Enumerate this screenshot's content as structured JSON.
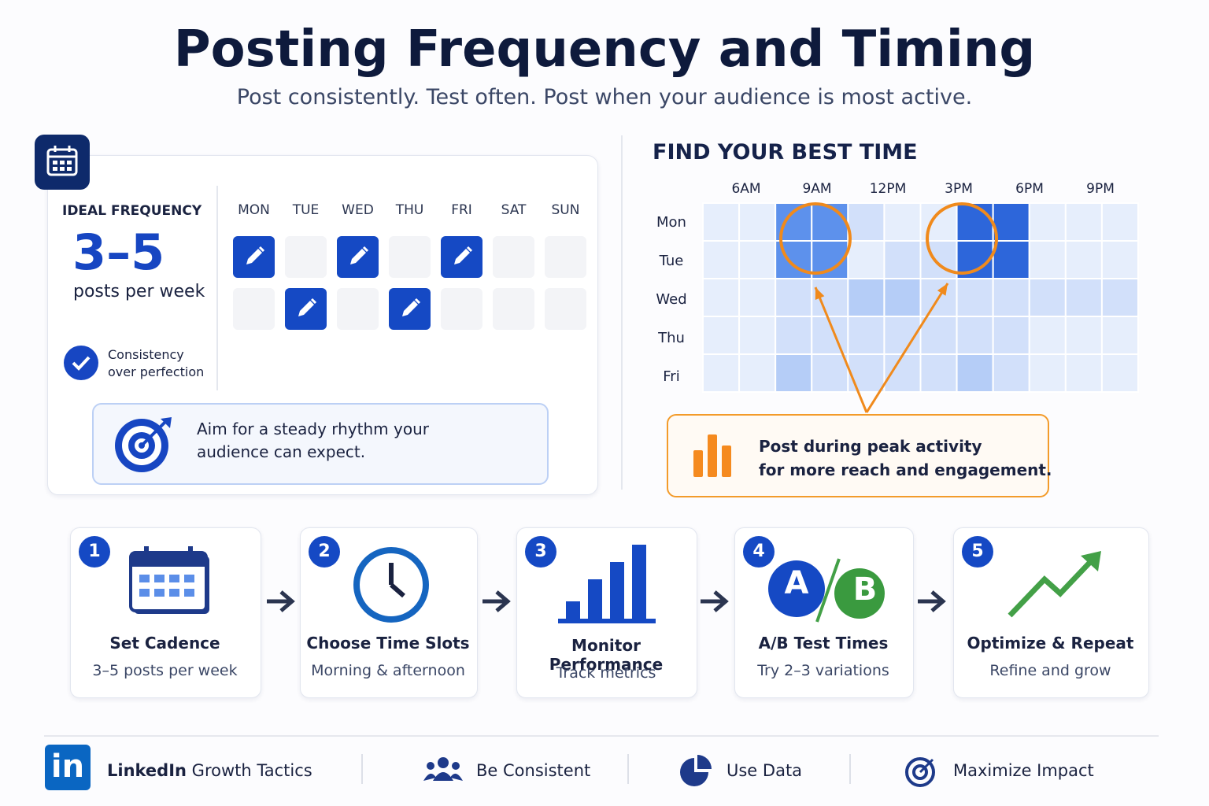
{
  "header": {
    "title": "Posting Frequency and Timing",
    "subtitle": "Post consistently. Test often. Post when your audience is most active."
  },
  "frequency": {
    "label": "IDEAL FREQUENCY",
    "value": "3–5",
    "unit": "posts per week",
    "check": "Consistency\nover perfection",
    "days": [
      "MON",
      "TUE",
      "WED",
      "THU",
      "FRI",
      "SAT",
      "SUN"
    ],
    "grid": [
      [
        1,
        0,
        1,
        0,
        1,
        0,
        0
      ],
      [
        0,
        1,
        0,
        1,
        0,
        0,
        0
      ]
    ],
    "tip": "Aim for a steady rhythm your\naudience can expect."
  },
  "heatmap": {
    "title": "FIND YOUR BEST TIME",
    "times": [
      "6AM",
      "9AM",
      "12PM",
      "3PM",
      "6PM",
      "9PM"
    ],
    "days": [
      "Mon",
      "Tue",
      "Wed",
      "Thu",
      "Fri"
    ],
    "levels": [
      [
        0,
        0,
        3,
        3,
        1,
        0,
        0,
        4,
        4,
        0,
        0,
        0
      ],
      [
        0,
        0,
        3,
        3,
        0,
        1,
        1,
        4,
        4,
        0,
        0,
        0
      ],
      [
        0,
        0,
        1,
        1,
        2,
        2,
        1,
        1,
        1,
        1,
        1,
        1
      ],
      [
        0,
        0,
        1,
        1,
        1,
        1,
        1,
        1,
        1,
        0,
        0,
        0
      ],
      [
        0,
        0,
        2,
        1,
        1,
        1,
        1,
        2,
        1,
        0,
        0,
        0
      ]
    ],
    "callout": "Post during peak activity\nfor more reach and engagement."
  },
  "steps": [
    {
      "number": "1",
      "title": "Set Cadence",
      "text": "3–5 posts per week"
    },
    {
      "number": "2",
      "title": "Choose Time Slots",
      "text": "Morning & afternoon"
    },
    {
      "number": "3",
      "title": "Monitor Performance",
      "text": "Track metrics"
    },
    {
      "number": "4",
      "title": "A/B Test Times",
      "text": "Try 2–3 variations"
    },
    {
      "number": "5",
      "title": "Optimize & Repeat",
      "text": "Refine and grow"
    }
  ],
  "ab": [
    "A",
    "B"
  ],
  "footer": {
    "logo": "in",
    "brand_bold": "LinkedIn",
    "brand_rest": "Growth Tactics",
    "items": [
      "Be Consistent",
      "Use Data",
      "Maximize Impact"
    ]
  }
}
